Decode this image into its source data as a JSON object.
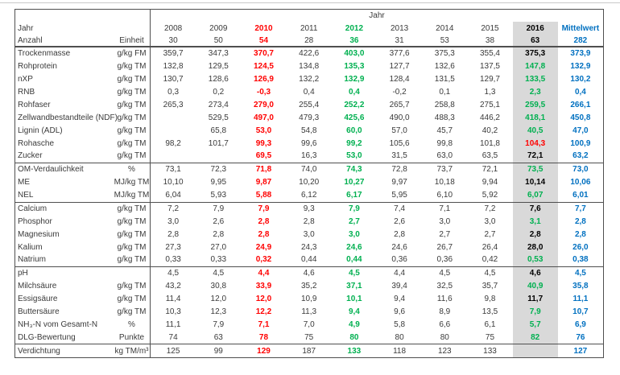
{
  "colors": {
    "red": "#ff0000",
    "green": "#00b050",
    "blue": "#0070c0",
    "highlight_background": "#d9d9d9",
    "border": "#4f4f4f"
  },
  "table": {
    "span_header": "Jahr",
    "row_header_label": "Jahr",
    "count_row_label": "Anzahl",
    "unit_header": "Einheit",
    "columns": [
      "2008",
      "2009",
      "2010",
      "2011",
      "2012",
      "2013",
      "2014",
      "2015",
      "2016",
      "Mittelwert"
    ],
    "column_styles": [
      "plain",
      "plain",
      "red",
      "plain",
      "green",
      "plain",
      "plain",
      "plain",
      "y2016",
      "blue"
    ],
    "counts": [
      "30",
      "50",
      "54",
      "28",
      "36",
      "31",
      "53",
      "38",
      "63",
      "282"
    ],
    "rows": [
      {
        "label": "Trockenmasse",
        "unit": "g/kg FM",
        "values": [
          "359,7",
          "347,3",
          "370,7",
          "422,6",
          "403,0",
          "377,6",
          "375,3",
          "355,4",
          "375,3",
          "373,9"
        ],
        "y2016": "black",
        "section_end": false
      },
      {
        "label": "Rohprotein",
        "unit": "g/kg TM",
        "values": [
          "132,8",
          "129,5",
          "124,5",
          "134,8",
          "135,3",
          "127,7",
          "132,6",
          "137,5",
          "147,8",
          "132,9"
        ],
        "y2016": "green",
        "section_end": false
      },
      {
        "label": "nXP",
        "unit": "g/kg TM",
        "values": [
          "130,7",
          "128,6",
          "126,9",
          "132,2",
          "132,9",
          "128,4",
          "131,5",
          "129,7",
          "133,5",
          "130,2"
        ],
        "y2016": "green",
        "section_end": false
      },
      {
        "label": "RNB",
        "unit": "g/kg TM",
        "values": [
          "0,3",
          "0,2",
          "-0,3",
          "0,4",
          "0,4",
          "-0,2",
          "0,1",
          "1,3",
          "2,3",
          "0,4"
        ],
        "y2016": "green",
        "section_end": false
      },
      {
        "label": "Rohfaser",
        "unit": "g/kg TM",
        "values": [
          "265,3",
          "273,4",
          "279,0",
          "255,4",
          "252,2",
          "265,7",
          "258,8",
          "275,1",
          "259,5",
          "266,1"
        ],
        "y2016": "green",
        "section_end": false
      },
      {
        "label": "Zellwandbestandteile (NDF)",
        "unit": "g/kg TM",
        "values": [
          "",
          "529,5",
          "497,0",
          "479,3",
          "425,6",
          "490,0",
          "488,3",
          "446,2",
          "418,1",
          "450,8"
        ],
        "y2016": "green",
        "section_end": false
      },
      {
        "label": "Lignin (ADL)",
        "unit": "g/kg TM",
        "values": [
          "",
          "65,8",
          "53,0",
          "54,8",
          "60,0",
          "57,0",
          "45,7",
          "40,2",
          "40,5",
          "47,0"
        ],
        "y2016": "green",
        "section_end": false
      },
      {
        "label": "Rohasche",
        "unit": "g/kg TM",
        "values": [
          "98,2",
          "101,7",
          "99,3",
          "99,6",
          "99,2",
          "105,6",
          "99,8",
          "101,8",
          "104,3",
          "100,9"
        ],
        "y2016": "red",
        "section_end": false
      },
      {
        "label": "Zucker",
        "unit": "g/kg TM",
        "values": [
          "",
          "",
          "69,5",
          "16,3",
          "53,0",
          "31,5",
          "63,0",
          "63,5",
          "72,1",
          "63,2"
        ],
        "y2016": "black",
        "section_end": true
      },
      {
        "label": "OM-Verdaulichkeit",
        "unit": "%",
        "values": [
          "73,1",
          "72,3",
          "71,8",
          "74,0",
          "74,3",
          "72,8",
          "73,7",
          "72,1",
          "73,5",
          "73,0"
        ],
        "y2016": "green",
        "section_end": false
      },
      {
        "label": "ME",
        "unit": "MJ/kg TM",
        "values": [
          "10,10",
          "9,95",
          "9,87",
          "10,20",
          "10,27",
          "9,97",
          "10,18",
          "9,94",
          "10,14",
          "10,06"
        ],
        "y2016": "black",
        "section_end": false
      },
      {
        "label": "NEL",
        "unit": "MJ/kg TM",
        "values": [
          "6,04",
          "5,93",
          "5,88",
          "6,12",
          "6,17",
          "5,95",
          "6,10",
          "5,92",
          "6,07",
          "6,01"
        ],
        "y2016": "green",
        "section_end": true
      },
      {
        "label": "Calcium",
        "unit": "g/kg TM",
        "values": [
          "7,2",
          "7,9",
          "7,9",
          "9,3",
          "7,9",
          "7,4",
          "7,1",
          "7,2",
          "7,6",
          "7,7"
        ],
        "y2016": "black",
        "section_end": false
      },
      {
        "label": "Phosphor",
        "unit": "g/kg TM",
        "values": [
          "3,0",
          "2,6",
          "2,8",
          "2,8",
          "2,7",
          "2,6",
          "3,0",
          "3,0",
          "3,1",
          "2,8"
        ],
        "y2016": "green",
        "section_end": false
      },
      {
        "label": "Magnesium",
        "unit": "g/kg TM",
        "values": [
          "2,8",
          "2,8",
          "2,8",
          "3,0",
          "3,0",
          "2,8",
          "2,7",
          "2,7",
          "2,8",
          "2,8"
        ],
        "y2016": "black",
        "section_end": false
      },
      {
        "label": "Kalium",
        "unit": "g/kg TM",
        "values": [
          "27,3",
          "27,0",
          "24,9",
          "24,3",
          "24,6",
          "24,6",
          "26,7",
          "26,4",
          "28,0",
          "26,0"
        ],
        "y2016": "black",
        "section_end": false
      },
      {
        "label": "Natrium",
        "unit": "g/kg TM",
        "values": [
          "0,33",
          "0,33",
          "0,32",
          "0,44",
          "0,44",
          "0,36",
          "0,36",
          "0,42",
          "0,53",
          "0,38"
        ],
        "y2016": "green",
        "section_end": true
      },
      {
        "label": "pH",
        "unit": "",
        "values": [
          "4,5",
          "4,5",
          "4,4",
          "4,6",
          "4,5",
          "4,4",
          "4,5",
          "4,5",
          "4,6",
          "4,5"
        ],
        "y2016": "black",
        "section_end": false
      },
      {
        "label": "Milchsäure",
        "unit": "g/kg TM",
        "values": [
          "43,2",
          "30,8",
          "33,9",
          "35,2",
          "37,1",
          "39,4",
          "32,5",
          "35,7",
          "40,9",
          "35,8"
        ],
        "y2016": "green",
        "section_end": false
      },
      {
        "label": "Essigsäure",
        "unit": "g/kg TM",
        "values": [
          "11,4",
          "12,0",
          "12,0",
          "10,9",
          "10,1",
          "9,4",
          "11,6",
          "9,8",
          "11,7",
          "11,1"
        ],
        "y2016": "black",
        "section_end": false
      },
      {
        "label": "Buttersäure",
        "unit": "g/kg TM",
        "values": [
          "10,3",
          "12,3",
          "12,2",
          "11,3",
          "9,4",
          "9,6",
          "8,9",
          "13,5",
          "7,9",
          "10,7"
        ],
        "y2016": "green",
        "section_end": false
      },
      {
        "label": "NH₃-N vom Gesamt-N",
        "unit": "%",
        "values": [
          "11,1",
          "7,9",
          "7,1",
          "7,0",
          "4,9",
          "5,8",
          "6,6",
          "6,1",
          "5,7",
          "6,9"
        ],
        "y2016": "green",
        "section_end": false
      },
      {
        "label": "DLG-Bewertung",
        "unit": "Punkte",
        "values": [
          "74",
          "63",
          "78",
          "75",
          "80",
          "80",
          "80",
          "75",
          "82",
          "76"
        ],
        "y2016": "green",
        "section_end": true
      },
      {
        "label": "Verdichtung",
        "unit": "kg TM/m³",
        "values": [
          "125",
          "99",
          "129",
          "187",
          "133",
          "118",
          "123",
          "133",
          "",
          "127"
        ],
        "y2016": "",
        "section_end": false
      }
    ]
  }
}
